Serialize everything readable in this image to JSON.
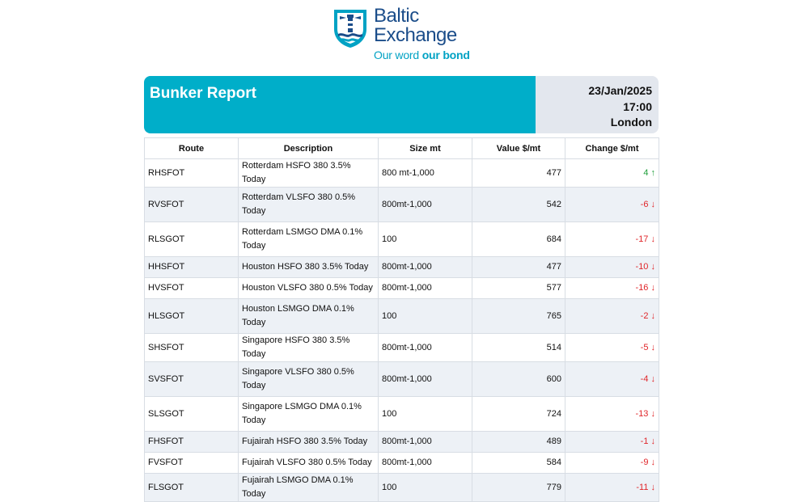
{
  "logo": {
    "name_line1": "Baltic",
    "name_line2": "Exchange",
    "tagline_part1": "Our word",
    "tagline_part2": "our bond",
    "brand_color": "#1b4d8a",
    "accent_color": "#00a2c4"
  },
  "header": {
    "title": "Bunker Report",
    "date": "23/Jan/2025",
    "time": "17:00",
    "location": "London",
    "accent_color": "#00aec9"
  },
  "table": {
    "columns": [
      "Route",
      "Description",
      "Size mt",
      "Value $/mt",
      "Change $/mt"
    ],
    "rows": [
      {
        "route": "RHSFOT",
        "description": "Rotterdam HSFO 380 3.5% Today",
        "size": "800 mt-1,000",
        "value": "477",
        "change": "4 ↑",
        "direction": "up",
        "height": 25
      },
      {
        "route": "RVSFOT",
        "description": "Rotterdam VLSFO 380 0.5% Today",
        "size": "800mt-1,000",
        "value": "542",
        "change": "-6 ↓",
        "direction": "down",
        "height": 43
      },
      {
        "route": "RLSGOT",
        "description": "Rotterdam LSMGO DMA 0.1% Today",
        "size": "100",
        "value": "684",
        "change": "-17 ↓",
        "direction": "down",
        "height": 43
      },
      {
        "route": "HHSFOT",
        "description": "Houston HSFO 380 3.5% Today",
        "size": "800mt-1,000",
        "value": "477",
        "change": "-10 ↓",
        "direction": "down",
        "height": 26
      },
      {
        "route": "HVSFOT",
        "description": "Houston VLSFO 380 0.5% Today",
        "size": "800mt-1,000",
        "value": "577",
        "change": "-16 ↓",
        "direction": "down",
        "height": 26
      },
      {
        "route": "HLSGOT",
        "description": "Houston LSMGO DMA 0.1% Today",
        "size": "100",
        "value": "765",
        "change": "-2 ↓",
        "direction": "down",
        "height": 43
      },
      {
        "route": "SHSFOT",
        "description": "Singapore HSFO 380 3.5% Today",
        "size": "800mt-1,000",
        "value": "514",
        "change": "-5 ↓",
        "direction": "down",
        "height": 26
      },
      {
        "route": "SVSFOT",
        "description": "Singapore VLSFO 380 0.5% Today",
        "size": "800mt-1,000",
        "value": "600",
        "change": "-4 ↓",
        "direction": "down",
        "height": 43
      },
      {
        "route": "SLSGOT",
        "description": "Singapore LSMGO DMA 0.1% Today",
        "size": "100",
        "value": "724",
        "change": "-13 ↓",
        "direction": "down",
        "height": 43
      },
      {
        "route": "FHSFOT",
        "description": "Fujairah HSFO 380 3.5% Today",
        "size": "800mt-1,000",
        "value": "489",
        "change": "-1 ↓",
        "direction": "down",
        "height": 26
      },
      {
        "route": "FVSFOT",
        "description": "Fujairah VLSFO 380 0.5% Today",
        "size": "800mt-1,000",
        "value": "584",
        "change": "-9 ↓",
        "direction": "down",
        "height": 26
      },
      {
        "route": "FLSGOT",
        "description": "Fujairah LSMGO DMA 0.1% Today",
        "size": "100",
        "value": "779",
        "change": "-11 ↓",
        "direction": "down",
        "height": 26
      }
    ]
  }
}
